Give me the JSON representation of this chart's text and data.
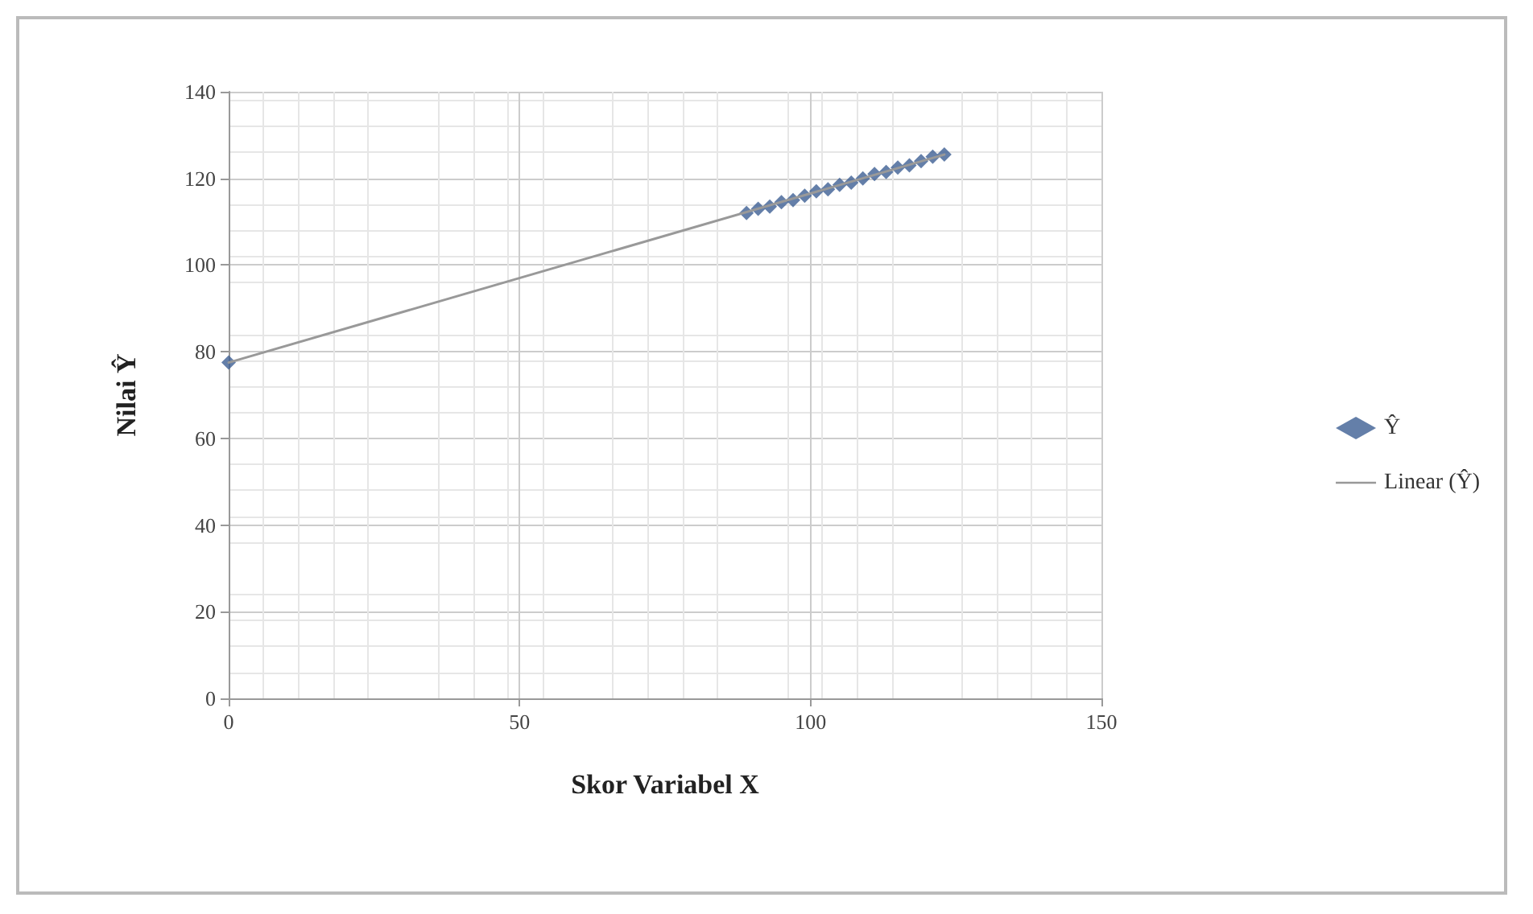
{
  "chart_data": {
    "type": "scatter",
    "xlabel": "Skor Variabel X",
    "ylabel": "Nilai Ŷ",
    "xlim": [
      0,
      150
    ],
    "xticks": [
      0,
      50,
      100,
      150
    ],
    "ylim": [
      0,
      140
    ],
    "yticks": [
      0,
      20,
      40,
      60,
      80,
      100,
      120,
      140
    ],
    "grid": true,
    "legend": "right",
    "marker": "diamond",
    "series": [
      {
        "name": "Ŷ",
        "color": "#3d5f94",
        "x": [
          0,
          89,
          91,
          93,
          95,
          97,
          99,
          101,
          103,
          105,
          107,
          109,
          111,
          113,
          115,
          117,
          119,
          121,
          123
        ],
        "values": [
          77.5,
          112,
          113,
          113.5,
          114.5,
          115,
          116,
          117,
          117.5,
          118.5,
          119,
          120,
          121,
          121.5,
          122.5,
          123,
          124,
          125,
          125.5
        ]
      },
      {
        "name": "Linear (Ŷ)",
        "type": "line",
        "color": "#999999",
        "line_style": "solid",
        "marker": "none",
        "x": [
          0,
          123
        ],
        "values": [
          77.5,
          125.5
        ]
      }
    ]
  }
}
